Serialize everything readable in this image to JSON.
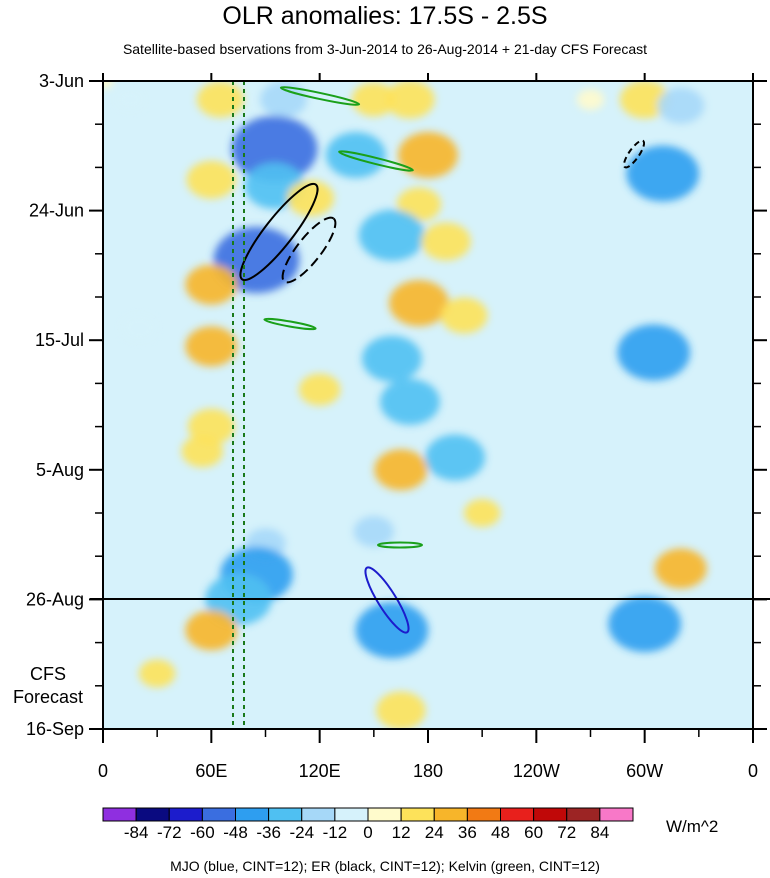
{
  "title": "OLR anomalies: 17.5S - 2.5S",
  "subtitle": "Satellite-based bservations from 3-Jun-2014 to 26-Aug-2014 + 21-day CFS Forecast",
  "footer": "MJO (blue, CINT=12); ER (black, CINT=12); Kelvin (green, CINT=12)",
  "chart_data": {
    "type": "heatmap",
    "title": "OLR anomalies: 17.5S - 2.5S",
    "x_ticks": [
      "0",
      "60E",
      "120E",
      "180",
      "120W",
      "60W",
      "0"
    ],
    "x_range_deg_east": [
      0,
      360
    ],
    "y_ticks": [
      "3-Jun",
      "24-Jun",
      "15-Jul",
      "5-Aug",
      "26-Aug",
      "16-Sep"
    ],
    "y_range_days": [
      0,
      105
    ],
    "observation_end": "26-Aug",
    "forecast_label": [
      "CFS",
      "Forecast"
    ],
    "colorbar": {
      "unit": "W/m^2",
      "levels": [
        "-84",
        "-72",
        "-60",
        "-48",
        "-36",
        "-24",
        "-12",
        "0",
        "12",
        "24",
        "36",
        "48",
        "60",
        "72",
        "84"
      ],
      "colors": [
        "#8f2fe0",
        "#0a0a80",
        "#1c1ccc",
        "#3a6ee0",
        "#2e9ef0",
        "#4fc0f2",
        "#a6d8f8",
        "#d6f2fb",
        "#fffbcc",
        "#fde25a",
        "#f7b52a",
        "#f27a14",
        "#e8201c",
        "#c00808",
        "#9c2424",
        "#f878c8"
      ]
    },
    "cells": [
      {
        "lon": 0,
        "lat_day": 0,
        "v": 0
      },
      {
        "lon": 15,
        "lat_day": 3,
        "v": -8
      },
      {
        "lon": 65,
        "lat_day": 3,
        "v": 20
      },
      {
        "lon": 100,
        "lat_day": 3,
        "v": -20
      },
      {
        "lon": 150,
        "lat_day": 3,
        "v": 18
      },
      {
        "lon": 170,
        "lat_day": 3,
        "v": 22
      },
      {
        "lon": 270,
        "lat_day": 3,
        "v": 5
      },
      {
        "lon": 300,
        "lat_day": 3,
        "v": 22
      },
      {
        "lon": 320,
        "lat_day": 4,
        "v": -20
      },
      {
        "lon": 95,
        "lat_day": 11,
        "v": -55
      },
      {
        "lon": 140,
        "lat_day": 12,
        "v": -30
      },
      {
        "lon": 180,
        "lat_day": 12,
        "v": 30
      },
      {
        "lon": 310,
        "lat_day": 15,
        "v": -40
      },
      {
        "lon": 60,
        "lat_day": 16,
        "v": 22
      },
      {
        "lon": 95,
        "lat_day": 17,
        "v": -30
      },
      {
        "lon": 115,
        "lat_day": 19,
        "v": 20
      },
      {
        "lon": 175,
        "lat_day": 20,
        "v": 18
      },
      {
        "lon": 160,
        "lat_day": 25,
        "v": -35
      },
      {
        "lon": 85,
        "lat_day": 29,
        "v": -50
      },
      {
        "lon": 190,
        "lat_day": 26,
        "v": 22
      },
      {
        "lon": 60,
        "lat_day": 33,
        "v": 24
      },
      {
        "lon": 175,
        "lat_day": 36,
        "v": 30
      },
      {
        "lon": 200,
        "lat_day": 38,
        "v": 20
      },
      {
        "lon": 20,
        "lat_day": 40,
        "v": -12
      },
      {
        "lon": 60,
        "lat_day": 43,
        "v": 24
      },
      {
        "lon": 160,
        "lat_day": 45,
        "v": -30
      },
      {
        "lon": 305,
        "lat_day": 44,
        "v": -40
      },
      {
        "lon": 120,
        "lat_day": 50,
        "v": 16
      },
      {
        "lon": 170,
        "lat_day": 52,
        "v": -30
      },
      {
        "lon": 60,
        "lat_day": 56,
        "v": 20
      },
      {
        "lon": 195,
        "lat_day": 61,
        "v": -30
      },
      {
        "lon": 165,
        "lat_day": 63,
        "v": 25
      },
      {
        "lon": 55,
        "lat_day": 60,
        "v": 16
      },
      {
        "lon": 210,
        "lat_day": 70,
        "v": 12
      },
      {
        "lon": 150,
        "lat_day": 73,
        "v": -15
      },
      {
        "lon": 90,
        "lat_day": 75,
        "v": -15
      },
      {
        "lon": 320,
        "lat_day": 79,
        "v": 24
      },
      {
        "lon": 85,
        "lat_day": 80,
        "v": -40
      },
      {
        "lon": 75,
        "lat_day": 84,
        "v": -35
      },
      {
        "lon": 300,
        "lat_day": 88,
        "v": -40
      },
      {
        "lon": 160,
        "lat_day": 89,
        "v": -40
      },
      {
        "lon": 60,
        "lat_day": 89,
        "v": 24
      },
      {
        "lon": 165,
        "lat_day": 102,
        "v": 22
      },
      {
        "lon": 30,
        "lat_day": 96,
        "v": 12
      }
    ],
    "mjo_contours": "blue",
    "er_contours": "black",
    "kelvin_contours": "green"
  }
}
